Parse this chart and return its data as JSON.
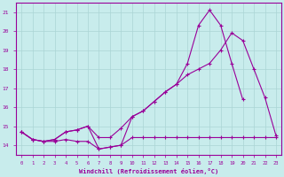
{
  "title": "",
  "xlabel": "Windchill (Refroidissement éolien,°C)",
  "ylabel": "",
  "bg_color": "#c8ecec",
  "grid_color": "#aad4d4",
  "line_color": "#990099",
  "x": [
    0,
    1,
    2,
    3,
    4,
    5,
    6,
    7,
    8,
    9,
    10,
    11,
    12,
    13,
    14,
    15,
    16,
    17,
    18,
    19,
    20,
    21,
    22,
    23
  ],
  "line1": [
    14.7,
    14.3,
    14.2,
    14.2,
    14.3,
    14.2,
    14.2,
    13.8,
    13.9,
    14.0,
    14.4,
    14.4,
    14.4,
    14.4,
    14.4,
    14.4,
    14.4,
    14.4,
    14.4,
    14.4,
    14.4,
    14.4,
    14.4,
    14.4
  ],
  "line2": [
    14.7,
    14.3,
    14.2,
    14.3,
    14.7,
    14.8,
    15.0,
    14.4,
    14.4,
    14.9,
    15.5,
    15.8,
    16.3,
    16.8,
    17.2,
    17.7,
    18.0,
    18.3,
    19.0,
    19.9,
    19.5,
    18.0,
    16.5,
    14.5
  ],
  "line3": [
    14.7,
    14.3,
    14.2,
    14.3,
    14.7,
    14.8,
    15.0,
    13.8,
    13.9,
    14.0,
    15.5,
    15.8,
    16.3,
    16.8,
    17.2,
    18.3,
    20.3,
    21.1,
    20.3,
    18.3,
    16.4,
    null,
    null,
    null
  ],
  "ylim": [
    13.5,
    21.5
  ],
  "xlim": [
    -0.5,
    23.5
  ],
  "yticks": [
    14,
    15,
    16,
    17,
    18,
    19,
    20,
    21
  ],
  "xticks": [
    0,
    1,
    2,
    3,
    4,
    5,
    6,
    7,
    8,
    9,
    10,
    11,
    12,
    13,
    14,
    15,
    16,
    17,
    18,
    19,
    20,
    21,
    22,
    23
  ]
}
